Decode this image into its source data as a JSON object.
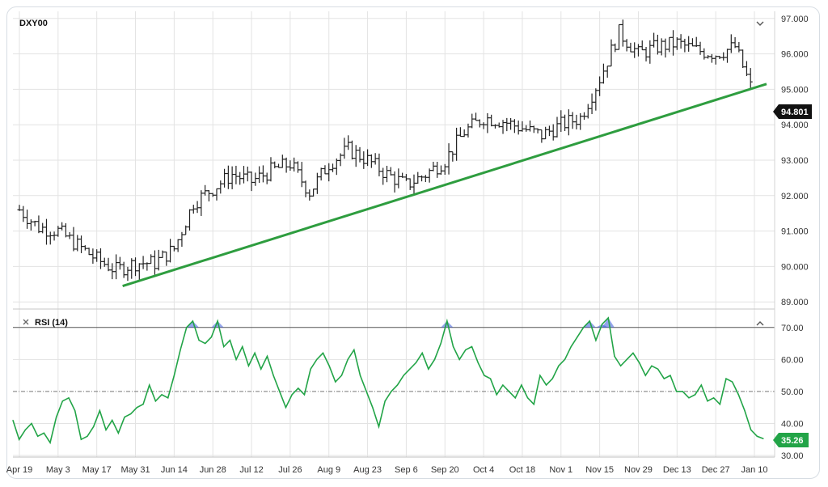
{
  "price_panel": {
    "symbol": "DXY00",
    "current_price": "94.801",
    "toggle_icon": "chevron-down-icon"
  },
  "rsi_panel": {
    "title": "RSI (14)",
    "current_value": "35.26",
    "close_icon": "close-icon",
    "toggle_icon": "chevron-up-icon"
  },
  "colors": {
    "bars": "#222222",
    "trendline": "#2e9d3f",
    "rsi_line": "#22a447",
    "rsi_overbought_fill": "#3b5bdb",
    "price_label_bg": "#111111",
    "rsi_label_bg": "#22a447"
  },
  "chart_data": [
    {
      "type": "ohlc",
      "title": "DXY00",
      "x_tick_labels": [
        "Apr 19",
        "May 3",
        "May 17",
        "May 31",
        "Jun 14",
        "Jun 28",
        "Jul 12",
        "Jul 26",
        "Aug 9",
        "Aug 23",
        "Sep 6",
        "Sep 20",
        "Oct 4",
        "Oct 18",
        "Nov 1",
        "Nov 15",
        "Nov 29",
        "Dec 13",
        "Dec 27",
        "Jan 10"
      ],
      "y_tick_labels": [
        "97.000",
        "96.000",
        "95.000",
        "94.000",
        "93.000",
        "92.000",
        "91.000",
        "90.000",
        "89.000"
      ],
      "ylim": [
        88.8,
        97.2
      ],
      "close_path": [
        {
          "x": "Apr 19",
          "y": 91.6
        },
        {
          "x": "Apr 26",
          "y": 91.1
        },
        {
          "x": "May 3",
          "y": 91.0
        },
        {
          "x": "May 10",
          "y": 90.6
        },
        {
          "x": "May 17",
          "y": 90.2
        },
        {
          "x": "May 24",
          "y": 89.9
        },
        {
          "x": "May 31",
          "y": 90.1
        },
        {
          "x": "Jun 7",
          "y": 90.1
        },
        {
          "x": "Jun 14",
          "y": 90.5
        },
        {
          "x": "Jun 21",
          "y": 91.8
        },
        {
          "x": "Jun 28",
          "y": 92.2
        },
        {
          "x": "Jul 5",
          "y": 92.6
        },
        {
          "x": "Jul 12",
          "y": 92.4
        },
        {
          "x": "Jul 19",
          "y": 92.7
        },
        {
          "x": "Jul 26",
          "y": 92.9
        },
        {
          "x": "Aug 2",
          "y": 92.1
        },
        {
          "x": "Aug 9",
          "y": 92.9
        },
        {
          "x": "Aug 16",
          "y": 93.3
        },
        {
          "x": "Aug 23",
          "y": 93.0
        },
        {
          "x": "Aug 30",
          "y": 92.6
        },
        {
          "x": "Sep 6",
          "y": 92.3
        },
        {
          "x": "Sep 13",
          "y": 92.6
        },
        {
          "x": "Sep 20",
          "y": 93.0
        },
        {
          "x": "Sep 27",
          "y": 93.8
        },
        {
          "x": "Oct 4",
          "y": 94.2
        },
        {
          "x": "Oct 11",
          "y": 94.1
        },
        {
          "x": "Oct 18",
          "y": 93.9
        },
        {
          "x": "Oct 25",
          "y": 93.7
        },
        {
          "x": "Nov 1",
          "y": 94.0
        },
        {
          "x": "Nov 8",
          "y": 94.2
        },
        {
          "x": "Nov 15",
          "y": 95.3
        },
        {
          "x": "Nov 22",
          "y": 96.6
        },
        {
          "x": "Nov 29",
          "y": 96.0
        },
        {
          "x": "Dec 6",
          "y": 96.2
        },
        {
          "x": "Dec 13",
          "y": 96.3
        },
        {
          "x": "Dec 20",
          "y": 96.1
        },
        {
          "x": "Dec 27",
          "y": 96.0
        },
        {
          "x": "Jan 3",
          "y": 96.2
        },
        {
          "x": "Jan 10",
          "y": 94.8
        }
      ],
      "trendline": [
        {
          "x": "May 24",
          "y": 89.45
        },
        {
          "x": "Jan 14",
          "y": 95.15
        }
      ]
    },
    {
      "type": "line",
      "title": "RSI (14)",
      "y_tick_labels": [
        "70.00",
        "60.00",
        "50.00",
        "40.00",
        "30.00"
      ],
      "ylim": [
        29.5,
        75
      ],
      "overbought": 70,
      "midline": 50,
      "series": [
        {
          "values": [
            41,
            35,
            38,
            40,
            36,
            37,
            34,
            42,
            47,
            48,
            44,
            35,
            36,
            39,
            44,
            38,
            41,
            37,
            42,
            43,
            45,
            46,
            52,
            47,
            49,
            48,
            55,
            63,
            70,
            72,
            66,
            65,
            67,
            72,
            64,
            66,
            60,
            64,
            58,
            62,
            57,
            61,
            55,
            50,
            45,
            49,
            51,
            49,
            57,
            60,
            62,
            58,
            53,
            55,
            60,
            63,
            55,
            50,
            45,
            39,
            47,
            50,
            52,
            55,
            57,
            59,
            62,
            57,
            60,
            65,
            72,
            64,
            60,
            63,
            64,
            59,
            55,
            54,
            49,
            52,
            50,
            48,
            52,
            48,
            46,
            55,
            52,
            54,
            58,
            60,
            64,
            67,
            70,
            72,
            66,
            71,
            73,
            61,
            58,
            60,
            62,
            59,
            55,
            58,
            57,
            54,
            55,
            50,
            50,
            48,
            49,
            52,
            47,
            48,
            46,
            54,
            53,
            49,
            44,
            38,
            36,
            35.26
          ]
        }
      ]
    }
  ]
}
